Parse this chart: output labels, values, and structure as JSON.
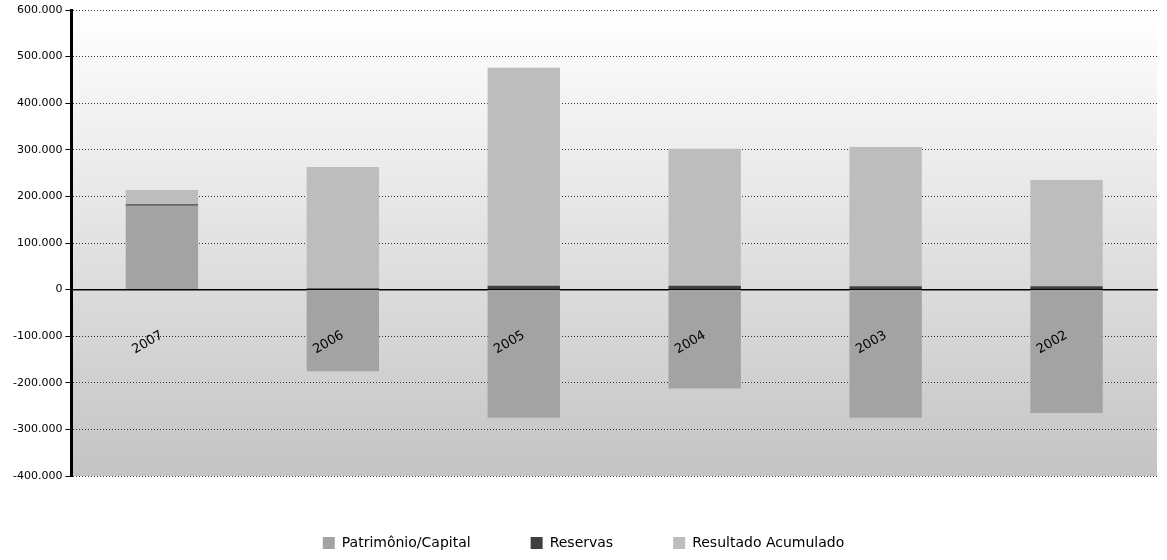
{
  "chart_data": {
    "type": "bar",
    "stacked": true,
    "categories": [
      "2007",
      "2006",
      "2005",
      "2004",
      "2003",
      "2002"
    ],
    "series": [
      {
        "name": "Patrimônio/Capital",
        "color": "#a3a3a3",
        "values": [
          180000,
          -175000,
          -275000,
          -212000,
          -275000,
          -265000
        ]
      },
      {
        "name": "Reservas",
        "color": "#404040",
        "values": [
          3000,
          3000,
          8000,
          8000,
          7000,
          7000
        ]
      },
      {
        "name": "Resultado Acumulado",
        "color": "#bdbdbd",
        "values": [
          31000,
          260000,
          468000,
          294000,
          299000,
          228000
        ]
      }
    ],
    "ylim": [
      -400000,
      600000
    ],
    "yticks": [
      {
        "value": -400000,
        "label": "-400.000"
      },
      {
        "value": -300000,
        "label": "-300.000"
      },
      {
        "value": -200000,
        "label": "-200.000"
      },
      {
        "value": -100000,
        "label": "-100.000"
      },
      0,
      {
        "value": 100000,
        "label": "100.000"
      },
      {
        "value": 200000,
        "label": "200.000"
      },
      {
        "value": 300000,
        "label": "300.000"
      },
      {
        "value": 400000,
        "label": "400.000"
      },
      {
        "value": 500000,
        "label": "500.000"
      },
      {
        "value": 600000,
        "label": "600.000"
      }
    ],
    "grid": "y",
    "legend": "bottom"
  }
}
